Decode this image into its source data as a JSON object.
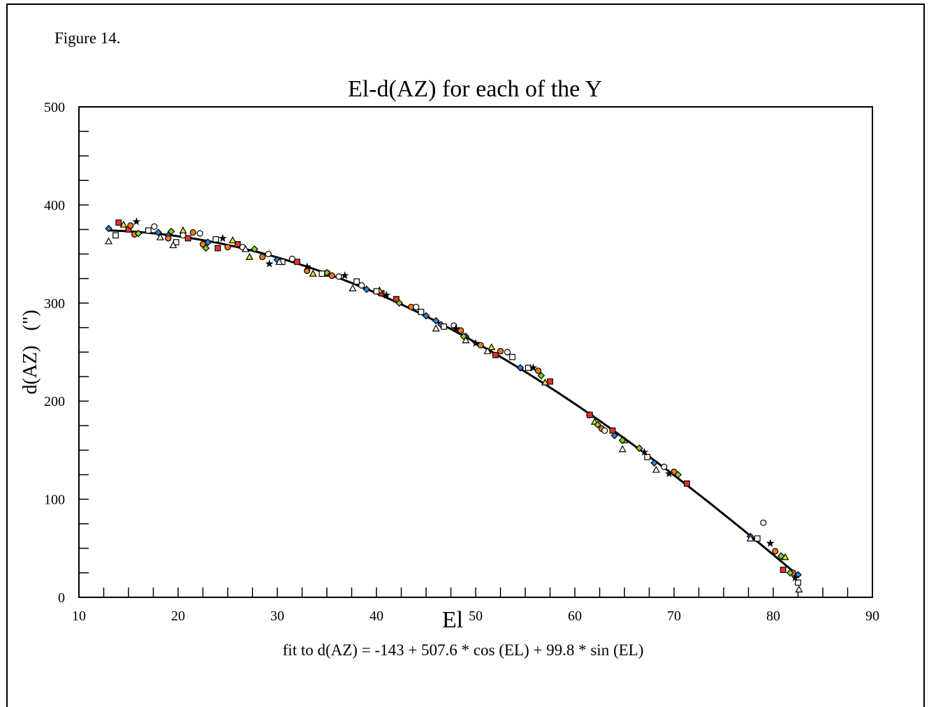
{
  "figure_label": "Figure 14.",
  "colors": {
    "blue": "#2f7fd8",
    "red": "#e8342a",
    "orange": "#f07a1a",
    "yellow": "#e6e619",
    "green": "#7ed321",
    "white": "#ffffff",
    "black": "#000000"
  },
  "chart_data": {
    "type": "scatter",
    "title": "El-d(AZ) for each of the Y",
    "xlabel": "El",
    "ylabel": "d(AZ)   (\")",
    "fit_label": "fit to d(AZ) = -143 + 507.6 * cos (EL) + 99.8 * sin (EL)",
    "xlim": [
      10,
      90
    ],
    "ylim": [
      0,
      500
    ],
    "x_ticks": [
      10,
      20,
      30,
      40,
      50,
      60,
      70,
      80,
      90
    ],
    "y_ticks": [
      0,
      100,
      200,
      300,
      400,
      500
    ],
    "fit": {
      "a": -143,
      "b": 507.6,
      "c": 99.8
    },
    "series": [
      {
        "marker": "diamond",
        "color": "blue",
        "points": [
          [
            13,
            376
          ],
          [
            18,
            372
          ],
          [
            19,
            369
          ],
          [
            23,
            362
          ],
          [
            30,
            344
          ],
          [
            39,
            314
          ],
          [
            45,
            287
          ],
          [
            46,
            282
          ],
          [
            46.5,
            278
          ],
          [
            49,
            266
          ],
          [
            54.5,
            234
          ],
          [
            61.5,
            186
          ],
          [
            64,
            165
          ],
          [
            68,
            137
          ],
          [
            77.7,
            62
          ],
          [
            82.5,
            23
          ]
        ]
      },
      {
        "marker": "square",
        "color": "red",
        "points": [
          [
            14,
            382
          ],
          [
            15,
            375
          ],
          [
            21,
            366
          ],
          [
            24,
            356
          ],
          [
            26,
            360
          ],
          [
            32,
            342
          ],
          [
            35,
            330
          ],
          [
            40.5,
            310
          ],
          [
            42,
            304
          ],
          [
            52,
            247
          ],
          [
            57.5,
            220
          ],
          [
            61.5,
            186
          ],
          [
            63.8,
            170
          ],
          [
            71.3,
            116
          ],
          [
            81,
            28
          ]
        ]
      },
      {
        "marker": "circle",
        "color": "orange",
        "points": [
          [
            15.2,
            379
          ],
          [
            15.6,
            370
          ],
          [
            19,
            366
          ],
          [
            21.5,
            372
          ],
          [
            22.5,
            360
          ],
          [
            25,
            357
          ],
          [
            28.5,
            347
          ],
          [
            33,
            333
          ],
          [
            35.5,
            328
          ],
          [
            43.5,
            296
          ],
          [
            48.5,
            272
          ],
          [
            50.5,
            257
          ],
          [
            52.5,
            251
          ],
          [
            56.3,
            231
          ],
          [
            62.7,
            172
          ],
          [
            70,
            128
          ],
          [
            80.2,
            47
          ],
          [
            82,
            25
          ]
        ]
      },
      {
        "marker": "triangle",
        "color": "yellow",
        "points": [
          [
            14.5,
            380
          ],
          [
            20.5,
            374
          ],
          [
            25.5,
            364
          ],
          [
            27.2,
            347
          ],
          [
            33.6,
            330
          ],
          [
            40.3,
            313
          ],
          [
            51.6,
            255
          ],
          [
            57,
            219
          ],
          [
            62,
            179
          ],
          [
            65,
            160
          ],
          [
            81.2,
            41
          ]
        ]
      },
      {
        "marker": "diamond",
        "color": "green",
        "points": [
          [
            16,
            371
          ],
          [
            19.3,
            373
          ],
          [
            22.8,
            356
          ],
          [
            27.7,
            355
          ],
          [
            35,
            331
          ],
          [
            42.3,
            300
          ],
          [
            48.8,
            266
          ],
          [
            56.6,
            226
          ],
          [
            62.3,
            176
          ],
          [
            64.8,
            160
          ],
          [
            66.5,
            152
          ],
          [
            70.4,
            125
          ],
          [
            80.8,
            42
          ],
          [
            81.7,
            25
          ]
        ]
      },
      {
        "marker": "square",
        "color": "white",
        "points": [
          [
            13.7,
            369
          ],
          [
            17,
            374
          ],
          [
            19.8,
            362
          ],
          [
            23.8,
            365
          ],
          [
            30.5,
            342
          ],
          [
            34.5,
            330
          ],
          [
            38,
            322
          ],
          [
            40,
            312
          ],
          [
            44.5,
            291
          ],
          [
            46.8,
            276
          ],
          [
            53.7,
            245
          ],
          [
            55.3,
            234
          ],
          [
            67.3,
            143
          ],
          [
            78.4,
            60
          ],
          [
            82.5,
            15
          ]
        ]
      },
      {
        "marker": "circle",
        "color": "white",
        "points": [
          [
            17.6,
            378
          ],
          [
            20.5,
            369
          ],
          [
            22.2,
            371
          ],
          [
            26.5,
            357
          ],
          [
            29.1,
            350
          ],
          [
            31.5,
            345
          ],
          [
            36.2,
            327
          ],
          [
            38.5,
            318
          ],
          [
            44,
            296
          ],
          [
            47.8,
            277
          ],
          [
            53.2,
            250
          ],
          [
            63,
            170
          ],
          [
            69,
            133
          ],
          [
            79,
            76
          ]
        ]
      },
      {
        "marker": "triangle",
        "color": "white",
        "points": [
          [
            13,
            363
          ],
          [
            18.2,
            367
          ],
          [
            19.5,
            359
          ],
          [
            26.8,
            355
          ],
          [
            30.2,
            342
          ],
          [
            37.6,
            315
          ],
          [
            46,
            274
          ],
          [
            49,
            262
          ],
          [
            51.2,
            251
          ],
          [
            64.8,
            151
          ],
          [
            68.2,
            130
          ],
          [
            77.7,
            60
          ],
          [
            82.6,
            8
          ]
        ]
      },
      {
        "marker": "star",
        "color": "black",
        "points": [
          [
            15.8,
            383
          ],
          [
            24.5,
            366
          ],
          [
            29.2,
            340
          ],
          [
            33,
            337
          ],
          [
            36.8,
            328
          ],
          [
            41,
            308
          ],
          [
            48,
            274
          ],
          [
            50,
            259
          ],
          [
            55.8,
            234
          ],
          [
            67,
            148
          ],
          [
            69.5,
            126
          ],
          [
            79.7,
            55
          ],
          [
            82.2,
            20
          ]
        ]
      }
    ]
  }
}
